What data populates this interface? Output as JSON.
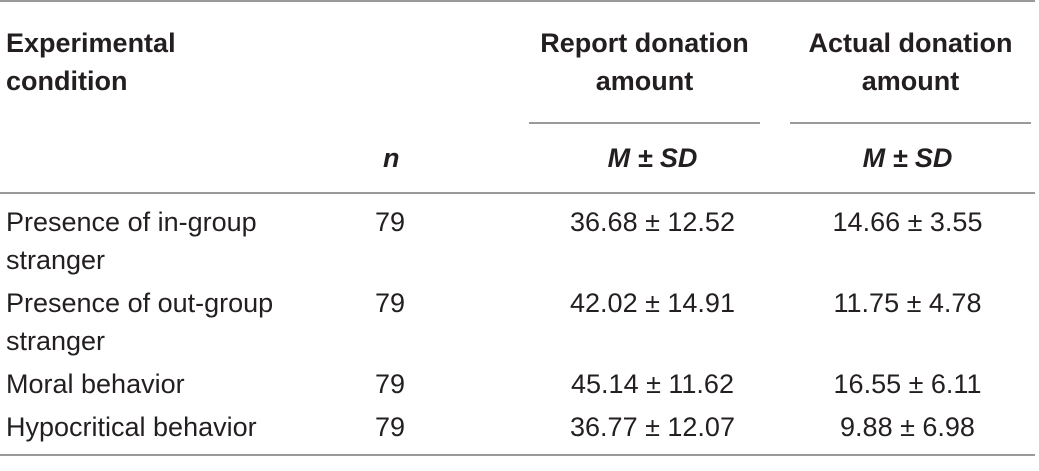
{
  "table": {
    "headers": {
      "condition": "Experimental condition",
      "n": "n",
      "report_group": "Report donation amount",
      "actual_group": "Actual donation amount",
      "report_stat": "M ± SD",
      "actual_stat": "M ± SD"
    },
    "rows": [
      {
        "condition": "Presence of in-group stranger",
        "n": "79",
        "report": "36.68 ± 12.52",
        "actual": "14.66 ± 3.55"
      },
      {
        "condition": "Presence of out-group stranger",
        "n": "79",
        "report": "42.02 ± 14.91",
        "actual": "11.75 ± 4.78"
      },
      {
        "condition": "Moral behavior",
        "n": "79",
        "report": "45.14 ± 11.62",
        "actual": "16.55 ± 6.11"
      },
      {
        "condition": "Hypocritical behavior",
        "n": "79",
        "report": "36.77 ± 12.07",
        "actual": "9.88 ± 6.98"
      }
    ]
  }
}
